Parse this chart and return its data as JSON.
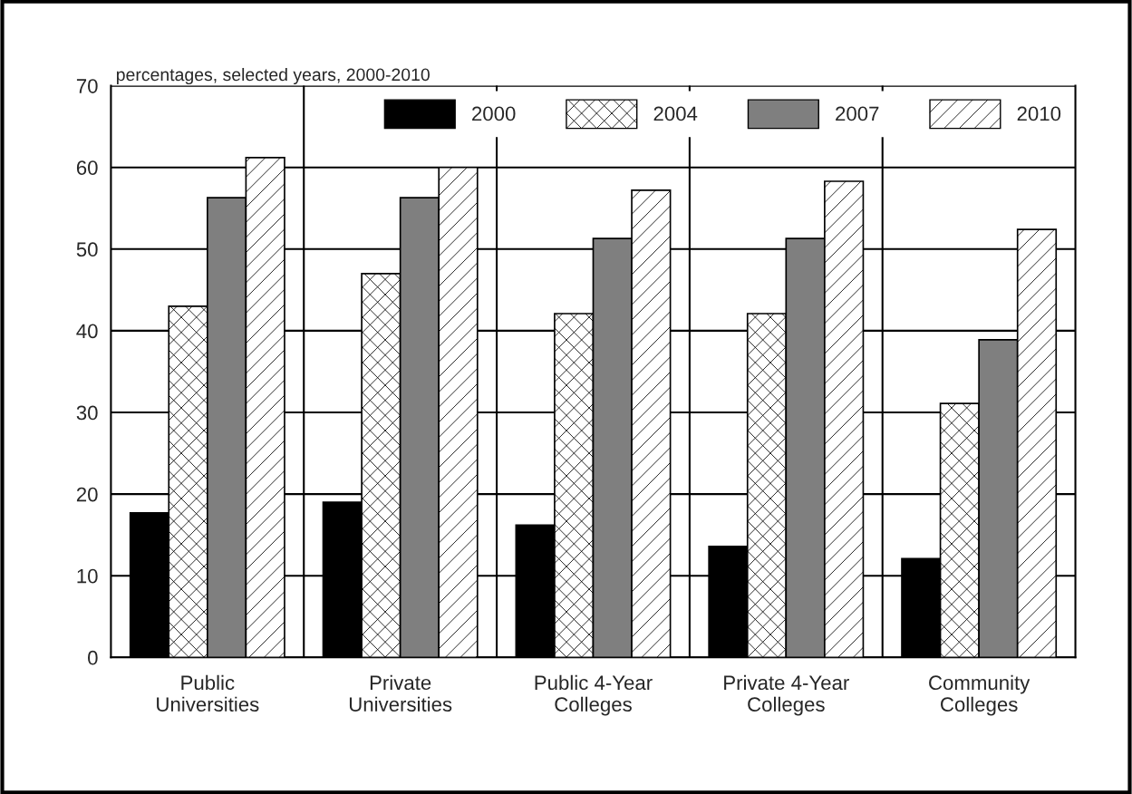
{
  "chart_data": {
    "type": "bar",
    "title": "percentages, selected years, 2000-2010",
    "categories": [
      "Public\nUniversities",
      "Private\nUniversities",
      "Public 4-Year\nColleges",
      "Private 4-Year\nColleges",
      "Community\nColleges"
    ],
    "series": [
      {
        "name": "2000",
        "color": "#000000",
        "values": [
          17.7,
          19,
          16.2,
          13.6,
          12.1
        ]
      },
      {
        "name": "2004",
        "color": "#ffffff",
        "values": [
          43,
          47,
          42.1,
          42.1,
          31.1
        ]
      },
      {
        "name": "2007",
        "color": "#7f7f7f",
        "values": [
          56.3,
          56.3,
          51.3,
          51.3,
          38.9
        ]
      },
      {
        "name": "2010",
        "color": "#ffffff",
        "values": [
          61.2,
          60,
          57.2,
          58.3,
          52.4
        ]
      }
    ],
    "ylim": [
      0,
      70
    ],
    "yticks": [
      0,
      10,
      20,
      30,
      40,
      50,
      60,
      70
    ],
    "grid": "y",
    "legend": "top right"
  }
}
